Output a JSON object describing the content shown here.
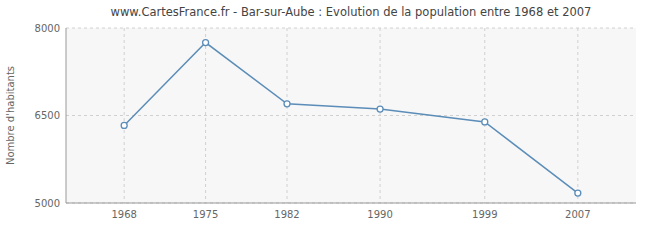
{
  "chart_data": {
    "type": "line",
    "title": "www.CartesFrance.fr - Bar-sur-Aube : Evolution de la population entre 1968 et 2007",
    "y_label": "Nombre d'habitants",
    "x": [
      1968,
      1975,
      1982,
      1990,
      1999,
      2007
    ],
    "values": [
      6330,
      7750,
      6700,
      6610,
      6390,
      5170
    ],
    "color": "#5b8db8",
    "marker": "circle",
    "xlim": [
      1963,
      2012
    ],
    "xticks": [
      1968,
      1975,
      1982,
      1990,
      1999,
      2007
    ],
    "ylim": [
      5000,
      8000
    ],
    "yticks": [
      5000,
      6500,
      8000
    ],
    "grid": true
  }
}
